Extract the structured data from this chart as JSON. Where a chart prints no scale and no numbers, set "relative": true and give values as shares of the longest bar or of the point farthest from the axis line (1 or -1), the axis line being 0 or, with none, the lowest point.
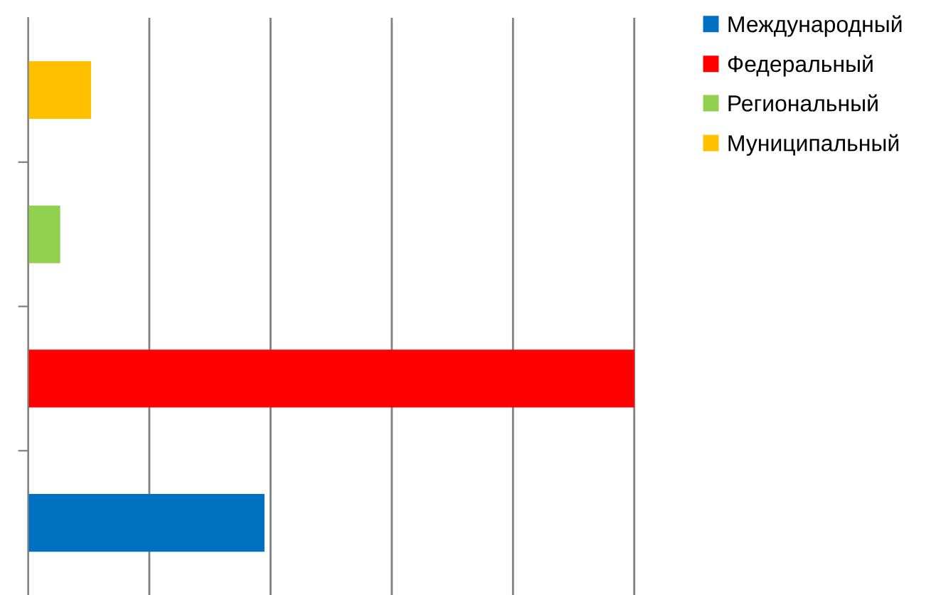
{
  "chart_data": {
    "type": "bar",
    "orientation": "horizontal",
    "stacked": true,
    "relative": true,
    "grid": "x",
    "legend": "top right",
    "categories": [
      null,
      null,
      null,
      null
    ],
    "series": [
      {
        "name": "Международный",
        "color": "#0070c0",
        "values": [
          null,
          null,
          null,
          0.39
        ]
      },
      {
        "name": "Федеральный",
        "color": "#ff0000",
        "values": [
          null,
          null,
          1,
          null
        ]
      },
      {
        "name": "Региональный",
        "color": "#92d050",
        "values": [
          null,
          0.053,
          null,
          null
        ]
      },
      {
        "name": "Муниципальный",
        "color": "#ffc000",
        "values": [
          0.104,
          null,
          null,
          null
        ]
      }
    ]
  }
}
